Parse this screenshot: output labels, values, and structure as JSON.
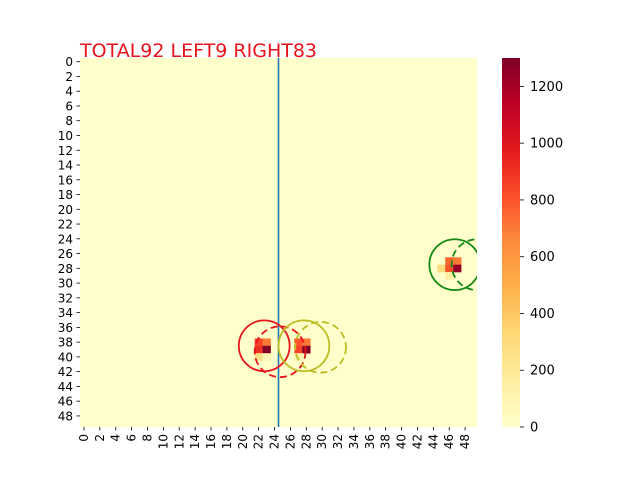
{
  "chart_data": {
    "type": "heatmap",
    "title": "TOTAL92  LEFT9 RIGHT83",
    "title_color": "#e8141c",
    "grid_size": 50,
    "x_ticks": [
      "0",
      "2",
      "4",
      "6",
      "8",
      "10",
      "12",
      "14",
      "16",
      "18",
      "20",
      "22",
      "24",
      "26",
      "28",
      "30",
      "32",
      "34",
      "36",
      "38",
      "40",
      "42",
      "44",
      "46",
      "48"
    ],
    "y_ticks": [
      "0",
      "2",
      "4",
      "6",
      "8",
      "10",
      "12",
      "14",
      "16",
      "18",
      "20",
      "22",
      "24",
      "26",
      "28",
      "30",
      "32",
      "34",
      "36",
      "38",
      "40",
      "42",
      "44",
      "46",
      "48"
    ],
    "colorbar": {
      "range": [
        0,
        1300
      ],
      "ticks": [
        "0",
        "200",
        "400",
        "600",
        "800",
        "1000",
        "1200"
      ],
      "colormap": "YlOrRd"
    },
    "cells": [
      {
        "row": 38,
        "col": 22,
        "value": 850
      },
      {
        "row": 38,
        "col": 23,
        "value": 700
      },
      {
        "row": 39,
        "col": 22,
        "value": 900
      },
      {
        "row": 39,
        "col": 23,
        "value": 1300
      },
      {
        "row": 40,
        "col": 22,
        "value": 250
      },
      {
        "row": 40,
        "col": 23,
        "value": 80
      },
      {
        "row": 38,
        "col": 27,
        "value": 800
      },
      {
        "row": 38,
        "col": 28,
        "value": 700
      },
      {
        "row": 39,
        "col": 27,
        "value": 850
      },
      {
        "row": 39,
        "col": 28,
        "value": 1300
      },
      {
        "row": 40,
        "col": 27,
        "value": 120
      },
      {
        "row": 27,
        "col": 46,
        "value": 750
      },
      {
        "row": 27,
        "col": 47,
        "value": 700
      },
      {
        "row": 28,
        "col": 45,
        "value": 300
      },
      {
        "row": 28,
        "col": 46,
        "value": 800
      },
      {
        "row": 28,
        "col": 47,
        "value": 1250
      },
      {
        "row": 29,
        "col": 46,
        "value": 150
      }
    ],
    "divider": {
      "x": 25,
      "color": "#1f77b4"
    },
    "circles": [
      {
        "cx": 23.2,
        "cy": 39.0,
        "r": 3.2,
        "color": "#e8141c",
        "style": "solid"
      },
      {
        "cx": 25.2,
        "cy": 39.8,
        "r": 3.2,
        "color": "#e8141c",
        "style": "dashed"
      },
      {
        "cx": 28.2,
        "cy": 39.0,
        "r": 3.2,
        "color": "#bcbd22",
        "style": "solid"
      },
      {
        "cx": 30.3,
        "cy": 39.2,
        "r": 3.2,
        "color": "#bcbd22",
        "style": "dashed"
      },
      {
        "cx": 47.2,
        "cy": 28.0,
        "r": 3.2,
        "color": "#138a13",
        "style": "solid"
      },
      {
        "cx": 50.0,
        "cy": 28.0,
        "r": 3.2,
        "color": "#138a13",
        "style": "dashed"
      }
    ]
  }
}
